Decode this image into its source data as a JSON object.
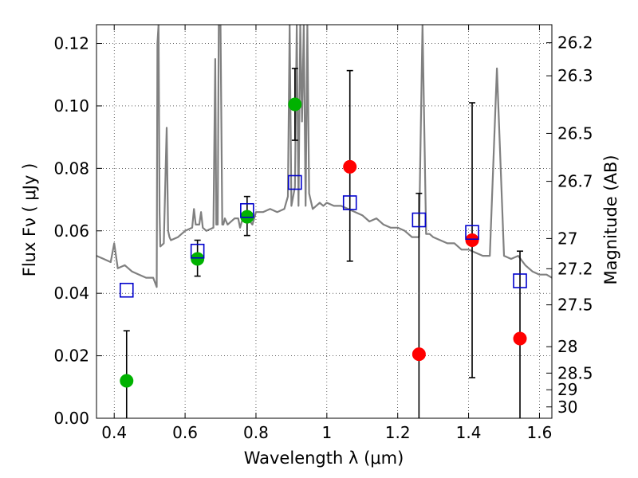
{
  "chart_data": {
    "type": "scatter",
    "title": "",
    "xlabel": "Wavelength  λ (μm)",
    "ylabel_left": "Flux  Fν  ( μJy )",
    "ylabel_right": "Magnitude (AB)",
    "xlim": [
      0.35,
      1.635
    ],
    "ylim": [
      0.0,
      0.126
    ],
    "x_ticks": [
      0.4,
      0.6,
      0.8,
      1.0,
      1.2,
      1.4,
      1.6
    ],
    "x_tick_labels": [
      "0.4",
      "0.6",
      "0.8",
      "1",
      "1.2",
      "1.4",
      "1.6"
    ],
    "y_ticks": [
      0.0,
      0.02,
      0.04,
      0.06,
      0.08,
      0.1,
      0.12
    ],
    "y_tick_labels": [
      "0.00",
      "0.02",
      "0.04",
      "0.06",
      "0.08",
      "0.10",
      "0.12"
    ],
    "right_ticks": [
      {
        "label": "26.2",
        "value": 26.2
      },
      {
        "label": "26.3",
        "value": 26.3
      },
      {
        "label": "26.5",
        "value": 26.5
      },
      {
        "label": "26.7",
        "value": 26.7
      },
      {
        "label": "27",
        "value": 27.0
      },
      {
        "label": "27.2",
        "value": 27.2
      },
      {
        "label": "27.5",
        "value": 27.5
      },
      {
        "label": "28",
        "value": 28.0
      },
      {
        "label": "28.5",
        "value": 28.5
      },
      {
        "label": "29",
        "value": 29.0
      },
      {
        "label": "30",
        "value": 30.0
      }
    ],
    "grid": true,
    "colors": {
      "spectrum": "#808080",
      "detections": "#00b200",
      "upper": "#ff0000",
      "model": "#0000cc",
      "errorbar": "#000000"
    },
    "spectrum": {
      "x": [
        0.35,
        0.37,
        0.39,
        0.4,
        0.41,
        0.43,
        0.45,
        0.47,
        0.49,
        0.51,
        0.52,
        0.522,
        0.525,
        0.528,
        0.53,
        0.54,
        0.548,
        0.552,
        0.556,
        0.56,
        0.58,
        0.6,
        0.62,
        0.625,
        0.63,
        0.64,
        0.645,
        0.65,
        0.66,
        0.68,
        0.685,
        0.688,
        0.692,
        0.695,
        0.7,
        0.705,
        0.708,
        0.712,
        0.72,
        0.74,
        0.75,
        0.755,
        0.76,
        0.77,
        0.79,
        0.8,
        0.82,
        0.84,
        0.86,
        0.88,
        0.89,
        0.895,
        0.9,
        0.91,
        0.915,
        0.92,
        0.925,
        0.93,
        0.935,
        0.94,
        0.945,
        0.95,
        0.96,
        0.98,
        0.99,
        1.0,
        1.02,
        1.04,
        1.06,
        1.08,
        1.1,
        1.12,
        1.14,
        1.16,
        1.18,
        1.2,
        1.22,
        1.24,
        1.26,
        1.27,
        1.28,
        1.29,
        1.3,
        1.32,
        1.34,
        1.36,
        1.38,
        1.4,
        1.42,
        1.44,
        1.46,
        1.48,
        1.5,
        1.52,
        1.54,
        1.56,
        1.58,
        1.6,
        1.62,
        1.635
      ],
      "y": [
        0.052,
        0.051,
        0.05,
        0.056,
        0.048,
        0.049,
        0.047,
        0.046,
        0.045,
        0.045,
        0.042,
        0.12,
        0.126,
        0.066,
        0.055,
        0.056,
        0.093,
        0.06,
        0.058,
        0.057,
        0.058,
        0.06,
        0.061,
        0.067,
        0.062,
        0.062,
        0.066,
        0.061,
        0.06,
        0.061,
        0.115,
        0.062,
        0.062,
        0.126,
        0.126,
        0.062,
        0.062,
        0.064,
        0.062,
        0.064,
        0.064,
        0.061,
        0.063,
        0.065,
        0.062,
        0.066,
        0.066,
        0.067,
        0.066,
        0.067,
        0.071,
        0.126,
        0.068,
        0.074,
        0.126,
        0.068,
        0.126,
        0.095,
        0.126,
        0.068,
        0.126,
        0.072,
        0.067,
        0.069,
        0.068,
        0.069,
        0.068,
        0.068,
        0.067,
        0.066,
        0.065,
        0.063,
        0.064,
        0.062,
        0.061,
        0.061,
        0.06,
        0.058,
        0.058,
        0.126,
        0.059,
        0.059,
        0.058,
        0.057,
        0.056,
        0.056,
        0.054,
        0.054,
        0.053,
        0.052,
        0.052,
        0.112,
        0.052,
        0.051,
        0.052,
        0.049,
        0.047,
        0.046,
        0.046,
        0.045
      ]
    },
    "series": [
      {
        "marker": "circle",
        "color_key": "detections",
        "points": [
          {
            "x": 0.435,
            "y": 0.012,
            "err_lo": 0.0,
            "err_hi": 0.028
          },
          {
            "x": 0.635,
            "y": 0.051,
            "err_lo": 0.0455,
            "err_hi": 0.057
          },
          {
            "x": 0.775,
            "y": 0.0645,
            "err_lo": 0.0585,
            "err_hi": 0.071
          },
          {
            "x": 0.91,
            "y": 0.1005,
            "err_lo": 0.089,
            "err_hi": 0.112
          }
        ]
      },
      {
        "marker": "circle",
        "color_key": "upper",
        "points": [
          {
            "x": 1.065,
            "y": 0.0805,
            "err_lo": 0.0503,
            "err_hi": 0.1113
          },
          {
            "x": 1.26,
            "y": 0.0205,
            "err_lo": 0.0,
            "err_hi": 0.072
          },
          {
            "x": 1.41,
            "y": 0.057,
            "err_lo": 0.013,
            "err_hi": 0.101
          },
          {
            "x": 1.545,
            "y": 0.0255,
            "err_lo": 0.0,
            "err_hi": 0.0535
          }
        ]
      },
      {
        "marker": "square",
        "color_key": "model",
        "points": [
          {
            "x": 0.435,
            "y": 0.041
          },
          {
            "x": 0.635,
            "y": 0.0535
          },
          {
            "x": 0.775,
            "y": 0.0665
          },
          {
            "x": 0.91,
            "y": 0.0755
          },
          {
            "x": 1.065,
            "y": 0.069
          },
          {
            "x": 1.26,
            "y": 0.0635
          },
          {
            "x": 1.41,
            "y": 0.0595
          },
          {
            "x": 1.545,
            "y": 0.044
          }
        ]
      }
    ]
  }
}
